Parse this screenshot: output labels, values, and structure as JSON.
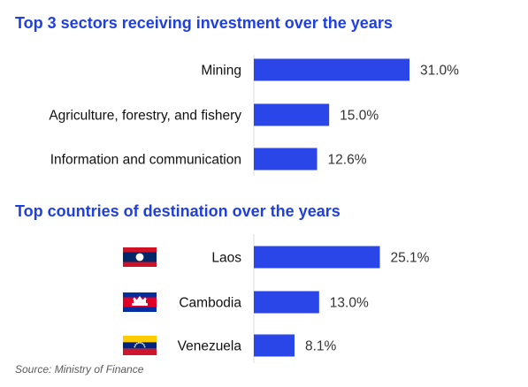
{
  "source": "Source: Ministry of Finance",
  "colors": {
    "bar": "#2a45e8",
    "title": "#1f3fe0",
    "axis": "#dddddd"
  },
  "chart_data": [
    {
      "type": "bar",
      "orientation": "horizontal",
      "title": "Top 3 sectors receiving investment over the years",
      "categories": [
        "Mining",
        "Agriculture, forestry, and fishery",
        "Information and communication"
      ],
      "values": [
        31.0,
        15.0,
        12.6
      ],
      "value_labels": [
        "31.0%",
        "15.0%",
        "12.6%"
      ],
      "unit": "%",
      "xlim": [
        0,
        31.0
      ]
    },
    {
      "type": "bar",
      "orientation": "horizontal",
      "title": "Top countries of destination over the years",
      "categories": [
        "Laos",
        "Cambodia",
        "Venezuela"
      ],
      "values": [
        25.1,
        13.0,
        8.1
      ],
      "value_labels": [
        "25.1%",
        "13.0%",
        "8.1%"
      ],
      "flags": [
        "laos-flag-icon",
        "cambodia-flag-icon",
        "venezuela-flag-icon"
      ],
      "unit": "%",
      "xlim": [
        0,
        31.0
      ]
    }
  ]
}
